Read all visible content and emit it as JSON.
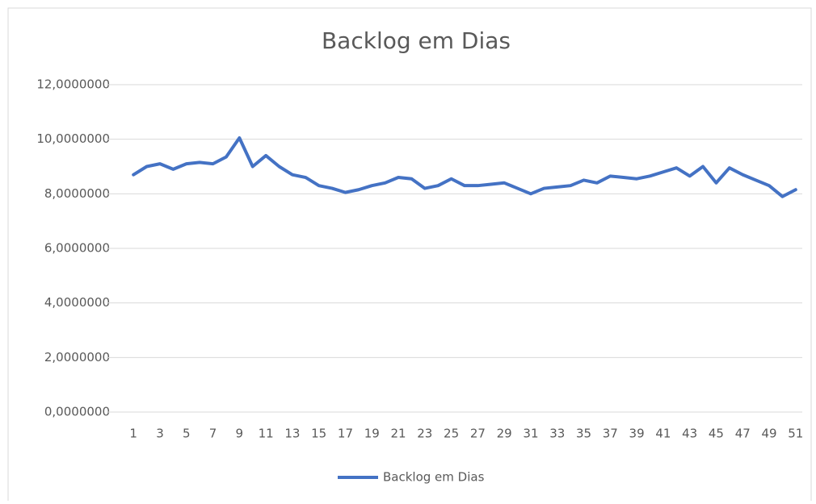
{
  "chart_data": {
    "type": "line",
    "title": "Backlog em Dias",
    "categories": [
      1,
      null,
      3,
      null,
      5,
      null,
      7,
      null,
      9,
      null,
      11,
      null,
      13,
      null,
      15,
      null,
      17,
      null,
      19,
      null,
      21,
      null,
      23,
      null,
      25,
      null,
      27,
      null,
      29,
      null,
      31,
      null,
      33,
      null,
      35,
      null,
      37,
      null,
      39,
      null,
      41,
      null,
      43,
      null,
      45,
      null,
      47,
      null,
      49,
      null,
      51
    ],
    "series": [
      {
        "name": "Backlog em Dias",
        "color": "#4472c4",
        "values": [
          8.7,
          9.0,
          9.1,
          8.9,
          9.1,
          9.15,
          9.1,
          9.35,
          10.05,
          9.0,
          9.4,
          9.0,
          8.7,
          8.6,
          8.3,
          8.2,
          8.05,
          8.15,
          8.3,
          8.4,
          8.6,
          8.55,
          8.2,
          8.3,
          8.55,
          8.3,
          8.3,
          8.35,
          8.4,
          8.2,
          8.0,
          8.2,
          8.25,
          8.3,
          8.5,
          8.4,
          8.65,
          8.6,
          8.55,
          8.65,
          8.8,
          8.95,
          8.65,
          9.0,
          8.4,
          8.95,
          8.7,
          8.5,
          8.3,
          7.9,
          8.15
        ]
      }
    ],
    "ylim": [
      0,
      12
    ],
    "yticks": [
      {
        "value": 0,
        "label": "0,0000000"
      },
      {
        "value": 2,
        "label": "2,0000000"
      },
      {
        "value": 4,
        "label": "4,0000000"
      },
      {
        "value": 6,
        "label": "6,0000000"
      },
      {
        "value": 8,
        "label": "8,0000000"
      },
      {
        "value": 10,
        "label": "10,0000000"
      },
      {
        "value": 12,
        "label": "12,0000000"
      }
    ],
    "grid": true,
    "legend": "bottom"
  }
}
